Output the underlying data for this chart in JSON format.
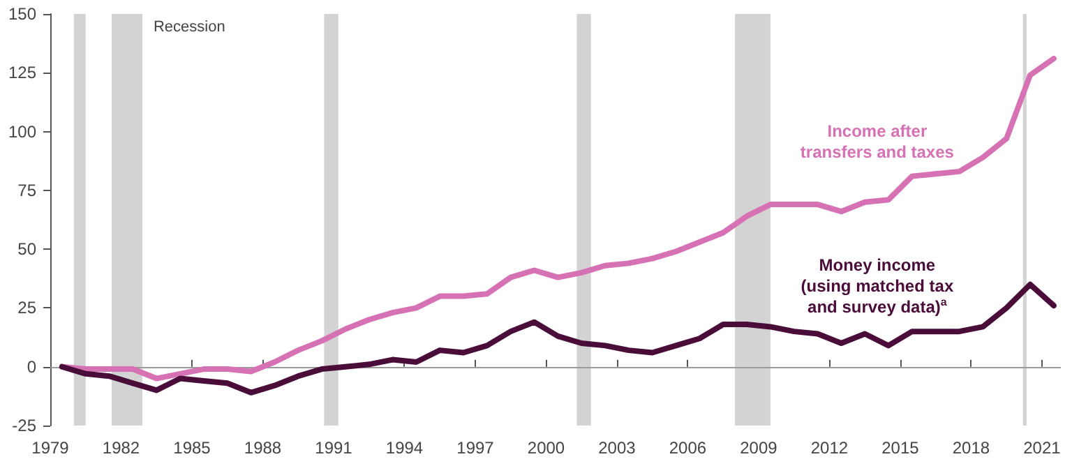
{
  "chart_data": {
    "type": "line",
    "x": [
      1979,
      1980,
      1981,
      1982,
      1983,
      1984,
      1985,
      1986,
      1987,
      1988,
      1989,
      1990,
      1991,
      1992,
      1993,
      1994,
      1995,
      1996,
      1997,
      1998,
      1999,
      2000,
      2001,
      2002,
      2003,
      2004,
      2005,
      2006,
      2007,
      2008,
      2009,
      2010,
      2011,
      2012,
      2013,
      2014,
      2015,
      2016,
      2017,
      2018,
      2019,
      2020,
      2021
    ],
    "series": [
      {
        "name": "Income after\ntransfers and taxes",
        "color": "#d672b4",
        "values": [
          0,
          -1,
          -1,
          -1,
          -5,
          -3,
          -1,
          -1,
          -2,
          2,
          7,
          11,
          16,
          20,
          23,
          25,
          30,
          30,
          31,
          38,
          41,
          38,
          40,
          43,
          44,
          46,
          49,
          53,
          57,
          64,
          69,
          69,
          69,
          66,
          70,
          71,
          81,
          82,
          83,
          89,
          97,
          124,
          131
        ]
      },
      {
        "name": "Money income\n(using matched tax\nand survey data)$^{a}$",
        "color": "#4a0d3a",
        "values": [
          0,
          -3,
          -4,
          -7,
          -10,
          -5,
          -6,
          -7,
          -11,
          -8,
          -4,
          -1,
          0,
          1,
          3,
          2,
          7,
          6,
          9,
          15,
          19,
          13,
          10,
          9,
          7,
          6,
          9,
          12,
          18,
          18,
          17,
          15,
          14,
          10,
          14,
          9,
          15,
          15,
          15,
          17,
          25,
          35,
          26
        ]
      }
    ],
    "xlim": [
      1978.5,
      2021.3
    ],
    "xticks": [
      {
        "value": 1978.5,
        "label": "1979"
      },
      {
        "value": 1981.5,
        "label": "1982"
      },
      {
        "value": 1984.5,
        "label": "1985"
      },
      {
        "value": 1987.5,
        "label": "1988"
      },
      {
        "value": 1990.5,
        "label": "1991"
      },
      {
        "value": 1993.5,
        "label": "1994"
      },
      {
        "value": 1996.5,
        "label": "1997"
      },
      {
        "value": 1999.5,
        "label": "2000"
      },
      {
        "value": 2002.5,
        "label": "2003"
      },
      {
        "value": 2005.5,
        "label": "2006"
      },
      {
        "value": 2008.5,
        "label": "2009"
      },
      {
        "value": 2011.5,
        "label": "2012"
      },
      {
        "value": 2014.5,
        "label": "2015"
      },
      {
        "value": 2017.5,
        "label": "2018"
      },
      {
        "value": 2020.5,
        "label": "2021"
      }
    ],
    "ylim": [
      -25,
      150
    ],
    "yticks": [
      -25,
      0,
      25,
      50,
      75,
      100,
      125,
      150
    ],
    "bands": [
      {
        "axis": "x",
        "from": 1979.5,
        "to": 1980.0,
        "label": null,
        "color": "#d3d3d3"
      },
      {
        "axis": "x",
        "from": 1981.1,
        "to": 1982.4,
        "label": "Recession",
        "color": "#d3d3d3"
      },
      {
        "axis": "x",
        "from": 1990.1,
        "to": 1990.7,
        "label": null,
        "color": "#d3d3d3"
      },
      {
        "axis": "x",
        "from": 2000.8,
        "to": 2001.4,
        "label": null,
        "color": "#d3d3d3"
      },
      {
        "axis": "x",
        "from": 2007.5,
        "to": 2009.0,
        "label": null,
        "color": "#d3d3d3"
      },
      {
        "axis": "x",
        "from": 2019.7,
        "to": 2019.85,
        "label": null,
        "color": "#d3d3d3"
      }
    ],
    "ref_lines": [
      {
        "axis": "y",
        "value": 0,
        "label": null,
        "color": "#9a9a9a"
      }
    ],
    "grid": false,
    "legend": false,
    "marker": "none",
    "line_style": "solid"
  }
}
